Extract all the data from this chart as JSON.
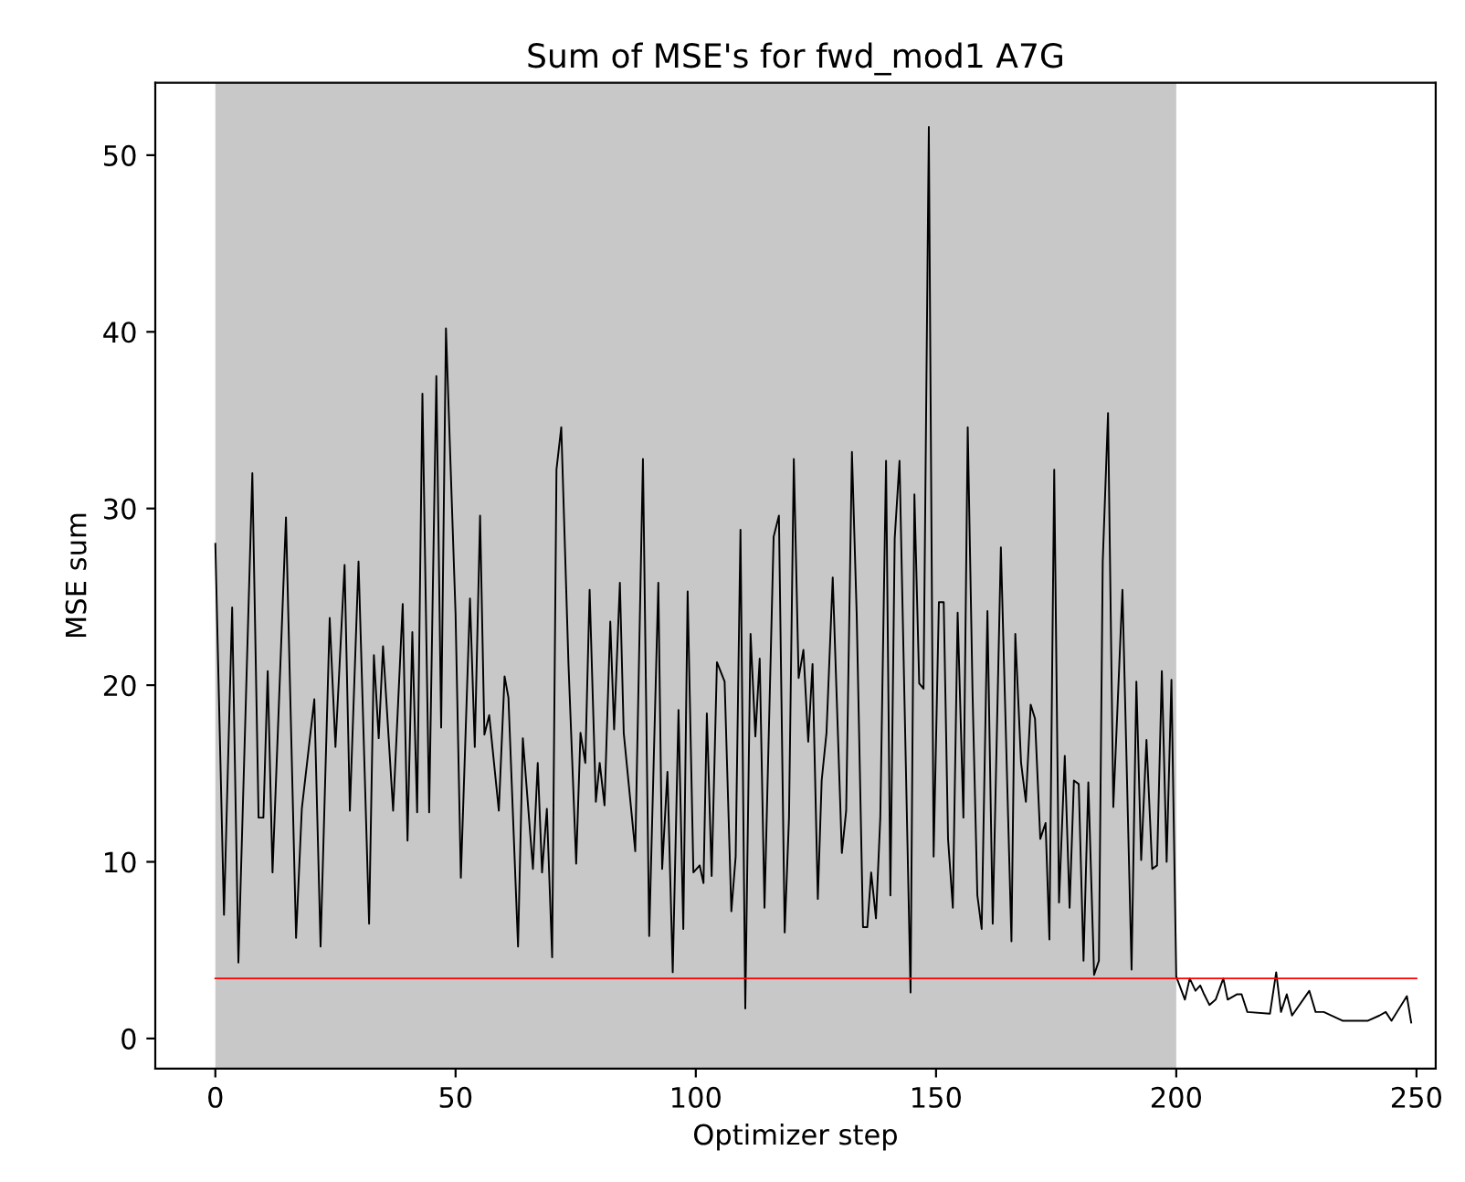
{
  "chart_data": {
    "type": "line",
    "title": "Sum of MSE's for fwd_mod1 A7G",
    "xlabel": "Optimizer step",
    "ylabel": "MSE sum",
    "xlim": [
      -12.5,
      254
    ],
    "ylim": [
      -1.7,
      54.1
    ],
    "xticks": [
      0,
      50,
      100,
      150,
      200,
      250
    ],
    "yticks": [
      0,
      10,
      20,
      30,
      40,
      50
    ],
    "grid": false,
    "legend": false,
    "bands": [
      {
        "axis": "x",
        "from": 0,
        "to": 200,
        "color": "#c8c8c8"
      }
    ],
    "series": [
      {
        "color": "#000000",
        "x": [
          0,
          1.8,
          3.5,
          4.8,
          7.7,
          9,
          10,
          10.9,
          11.9,
          14.7,
          16.8,
          18,
          20.6,
          21.9,
          23.8,
          25,
          26.9,
          28,
          29.8,
          32,
          33,
          34,
          34.9,
          37,
          39,
          40,
          41,
          42,
          43.1,
          44.5,
          46,
          47,
          48,
          50,
          51.1,
          53,
          54,
          55.1,
          56,
          57,
          59,
          60.2,
          61,
          63,
          64,
          66.1,
          67.1,
          68,
          69,
          70.1,
          71,
          72,
          73.5,
          75.1,
          76,
          77,
          77.9,
          79.2,
          80,
          81,
          82.2,
          83,
          84.2,
          85,
          87.4,
          89,
          90.3,
          92.2,
          93,
          94.1,
          95.2,
          96.4,
          97.4,
          98.3,
          99.5,
          100.8,
          101.6,
          102.3,
          103.3,
          104.4,
          106,
          107.4,
          108.3,
          109.3,
          110.3,
          111.4,
          112.4,
          113.3,
          114.3,
          116.2,
          117.3,
          118.5,
          119.4,
          120.4,
          121.4,
          122.4,
          123.4,
          124.3,
          125.4,
          126.2,
          127.2,
          128.5,
          130.4,
          131.3,
          132.5,
          133.5,
          134.8,
          135.7,
          136.5,
          137.5,
          138.4,
          139.6,
          140.5,
          141.4,
          142.4,
          144.7,
          145.5,
          146.5,
          147.4,
          148.5,
          149.5,
          150.6,
          151.6,
          152.5,
          153.5,
          154.5,
          155.7,
          156.6,
          157.6,
          158.6,
          159.5,
          160.7,
          161.8,
          163.5,
          165.7,
          166.5,
          167.7,
          168.7,
          169.7,
          170.6,
          171.7,
          172.8,
          173.6,
          174.6,
          175.6,
          176.8,
          177.8,
          178.7,
          179.7,
          180.7,
          181.7,
          182.9,
          183.9,
          184.7,
          185.8,
          186.9,
          188.8,
          190.7,
          191.7,
          192.7,
          193.8,
          195,
          196,
          197,
          198,
          199,
          200,
          201.8,
          202.8,
          204,
          205,
          205.8,
          206.9,
          208.2,
          209.8,
          210.7,
          212.6,
          213.6,
          214.8,
          219.5,
          220.8,
          221.8,
          223,
          224.1,
          227.7,
          229,
          230.7,
          234.7,
          239.8,
          242.3,
          243.6,
          244.8,
          248,
          248.9
        ],
        "values": [
          28,
          7,
          24.4,
          4.3,
          32,
          12.5,
          12.5,
          20.8,
          9.4,
          29.5,
          5.7,
          13,
          19.2,
          5.2,
          23.8,
          16.5,
          26.8,
          12.9,
          27,
          6.5,
          21.7,
          17,
          22.2,
          12.9,
          24.6,
          11.2,
          23,
          12.8,
          36.5,
          12.8,
          37.5,
          17.6,
          40.2,
          24,
          9.1,
          24.9,
          16.5,
          29.6,
          17.2,
          18.3,
          12.9,
          20.5,
          19.3,
          5.2,
          17,
          9.6,
          15.6,
          9.4,
          13,
          4.6,
          32.2,
          34.6,
          21.2,
          9.9,
          17.3,
          15.6,
          25.4,
          13.4,
          15.6,
          13.2,
          23.6,
          17.5,
          25.8,
          17.3,
          10.6,
          32.8,
          5.8,
          25.8,
          9.6,
          15.1,
          3.75,
          18.6,
          6.2,
          25.3,
          9.4,
          9.8,
          8.8,
          18.4,
          9.2,
          21.3,
          20.2,
          7.2,
          10.3,
          28.8,
          1.7,
          22.9,
          17.1,
          21.5,
          7.4,
          28.4,
          29.6,
          6,
          12.5,
          32.8,
          20.4,
          22,
          16.8,
          21.2,
          7.9,
          14.6,
          17.3,
          26.1,
          10.5,
          12.9,
          33.2,
          23.9,
          6.3,
          6.3,
          9.4,
          6.8,
          12.5,
          32.7,
          8.1,
          28.3,
          32.7,
          2.6,
          30.8,
          20.1,
          19.8,
          51.6,
          10.3,
          24.7,
          24.7,
          11.3,
          7.4,
          24.1,
          12.5,
          34.6,
          19.6,
          8.1,
          6.2,
          24.2,
          6.5,
          27.8,
          5.5,
          22.9,
          15.6,
          13.4,
          18.9,
          18.1,
          11.3,
          12.2,
          5.6,
          32.2,
          7.7,
          16,
          7.4,
          14.6,
          14.4,
          4.4,
          14.5,
          3.6,
          4.4,
          27,
          35.4,
          13.1,
          25.4,
          3.9,
          20.2,
          10.1,
          16.9,
          9.6,
          9.8,
          20.8,
          10,
          20.3,
          3.5,
          2.2,
          3.4,
          2.7,
          3,
          2.5,
          1.9,
          2.2,
          3.4,
          2.2,
          2.5,
          2.5,
          1.5,
          1.4,
          3.75,
          1.5,
          2.5,
          1.3,
          2.7,
          1.5,
          1.5,
          1,
          1,
          1.3,
          1.5,
          1,
          2.4,
          0.9
        ]
      },
      {
        "color": "#ff0000",
        "x": [
          0,
          250
        ],
        "values": [
          3.4,
          3.4
        ]
      }
    ]
  }
}
